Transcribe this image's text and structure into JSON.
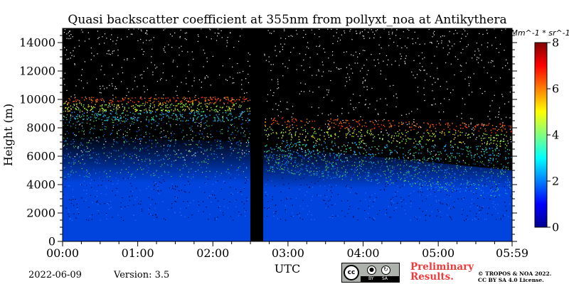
{
  "chart_data": {
    "type": "heatmap",
    "title": "Quasi backscatter coefficient at 355nm from pollyxt_noa at Antikythera",
    "xlabel": "UTC",
    "ylabel": "Height (m)",
    "x_ticks": [
      "00:00",
      "01:00",
      "02:00",
      "03:00",
      "04:00",
      "05:00",
      "05:59"
    ],
    "x_range_hours": [
      0,
      5.983
    ],
    "y_ticks": [
      0,
      2000,
      4000,
      6000,
      8000,
      10000,
      12000,
      14000
    ],
    "ylim": [
      0,
      15000
    ],
    "colorbar": {
      "unit": "Mm^-1 * sr^-1",
      "ticks": [
        0,
        2,
        4,
        6,
        8
      ],
      "range": [
        0,
        8
      ],
      "colormap": "jet"
    },
    "no_data_gap_hours": [
      2.5,
      2.67
    ],
    "cloud_layer": {
      "before_gap": {
        "base_m": 8500,
        "top_m": 10200
      },
      "after_gap": {
        "base_m": 6200,
        "top_m": 8800
      }
    },
    "aerosol_layer_top_m": {
      "start": 6500,
      "end": 4500
    },
    "colors": {
      "background": "#000000",
      "low_value": "#0000d0",
      "mid_value": "#50ff40",
      "high_value": "#ff2000"
    }
  },
  "footer": {
    "date": "2022-06-09",
    "version": "Version: 3.5",
    "preliminary_line1": "Preliminary",
    "preliminary_line2": "Results.",
    "copyright_line1": "© TROPOS & NOA 2022.",
    "copyright_line2": "CC BY SA 4.0 License.",
    "license_badge": {
      "cc": "cc",
      "by": "BY",
      "sa": "SA"
    }
  }
}
